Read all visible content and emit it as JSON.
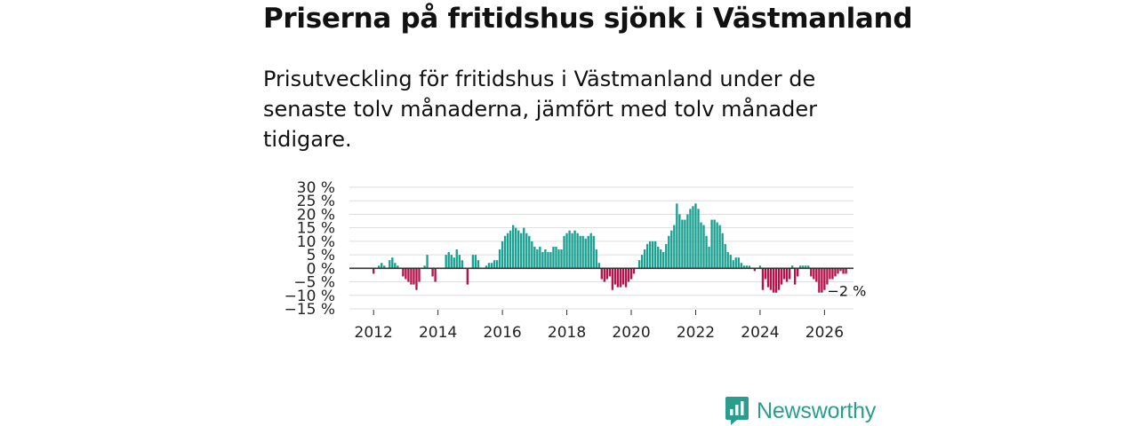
{
  "title": "Priserna på fritidshus sjönk i Västmanland",
  "subtitle": "Prisutveckling för fritidshus i Västmanland under de senaste tolv månaderna, jämfört med tolv månader tidigare.",
  "brand": {
    "name": "Newsworthy",
    "icon": "newsworthy-logo-icon",
    "color": "#2a9d8f"
  },
  "colors": {
    "positive": "#1aa091",
    "negative": "#b5134b",
    "grid": "#dddddd",
    "zero": "#333333"
  },
  "chart_data": {
    "type": "bar",
    "title": "Priserna på fritidshus sjönk i Västmanland",
    "xlabel": "",
    "ylabel": "",
    "unit": "%",
    "x_start": 2012.0,
    "step": 0.083333,
    "xlim": [
      2011.25,
      2026.9
    ],
    "ylim": [
      -15,
      30
    ],
    "yticks": [
      -15,
      -10,
      -5,
      0,
      5,
      10,
      15,
      20,
      25,
      30
    ],
    "ytick_labels": [
      "−15 %",
      "−10 %",
      "−5 %",
      "0 %",
      "5 %",
      "10 %",
      "15 %",
      "20 %",
      "25 %",
      "30 %"
    ],
    "xticks": [
      2012,
      2014,
      2016,
      2018,
      2020,
      2022,
      2024,
      2026
    ],
    "xtick_labels": [
      "2012",
      "2014",
      "2016",
      "2018",
      "2020",
      "2022",
      "2024",
      "2026"
    ],
    "annotation": {
      "text": "−2 %",
      "value": -2
    },
    "values": [
      -2,
      0,
      1,
      2,
      1,
      0,
      3,
      4,
      2,
      1,
      0,
      -3,
      -4,
      -5,
      -6,
      -6,
      -8,
      -5,
      0,
      1,
      5,
      0,
      -3,
      -5,
      0,
      0,
      0,
      5,
      6,
      5,
      4,
      7,
      5,
      3,
      0,
      -6,
      0,
      5,
      5,
      3,
      0,
      0,
      1,
      2,
      2,
      3,
      3,
      7,
      10,
      12,
      13,
      14,
      16,
      15,
      14,
      13,
      15,
      13,
      12,
      10,
      8,
      7,
      8,
      6,
      7,
      6,
      6,
      8,
      8,
      7,
      7,
      12,
      13,
      14,
      13,
      14,
      13,
      12,
      12,
      11,
      12,
      13,
      12,
      7,
      2,
      -4,
      -5,
      -4,
      -3,
      -8,
      -6,
      -7,
      -7,
      -6,
      -7,
      -5,
      -4,
      -2,
      0,
      3,
      5,
      7,
      9,
      10,
      10,
      10,
      8,
      7,
      6,
      9,
      12,
      14,
      16,
      24,
      20,
      18,
      18,
      20,
      22,
      23,
      24,
      22,
      17,
      16,
      12,
      8,
      18,
      18,
      17,
      16,
      13,
      9,
      6,
      5,
      3,
      4,
      4,
      2,
      1,
      1,
      1,
      0,
      -1,
      0,
      1,
      -8,
      -4,
      -7,
      -8,
      -9,
      -9,
      -8,
      -6,
      -4,
      -5,
      -4,
      1,
      -6,
      -3,
      1,
      1,
      1,
      1,
      -3,
      -4,
      -5,
      -9,
      -9,
      -8,
      -6,
      -4,
      -4,
      -3,
      -2,
      -1,
      -2,
      -2
    ]
  }
}
